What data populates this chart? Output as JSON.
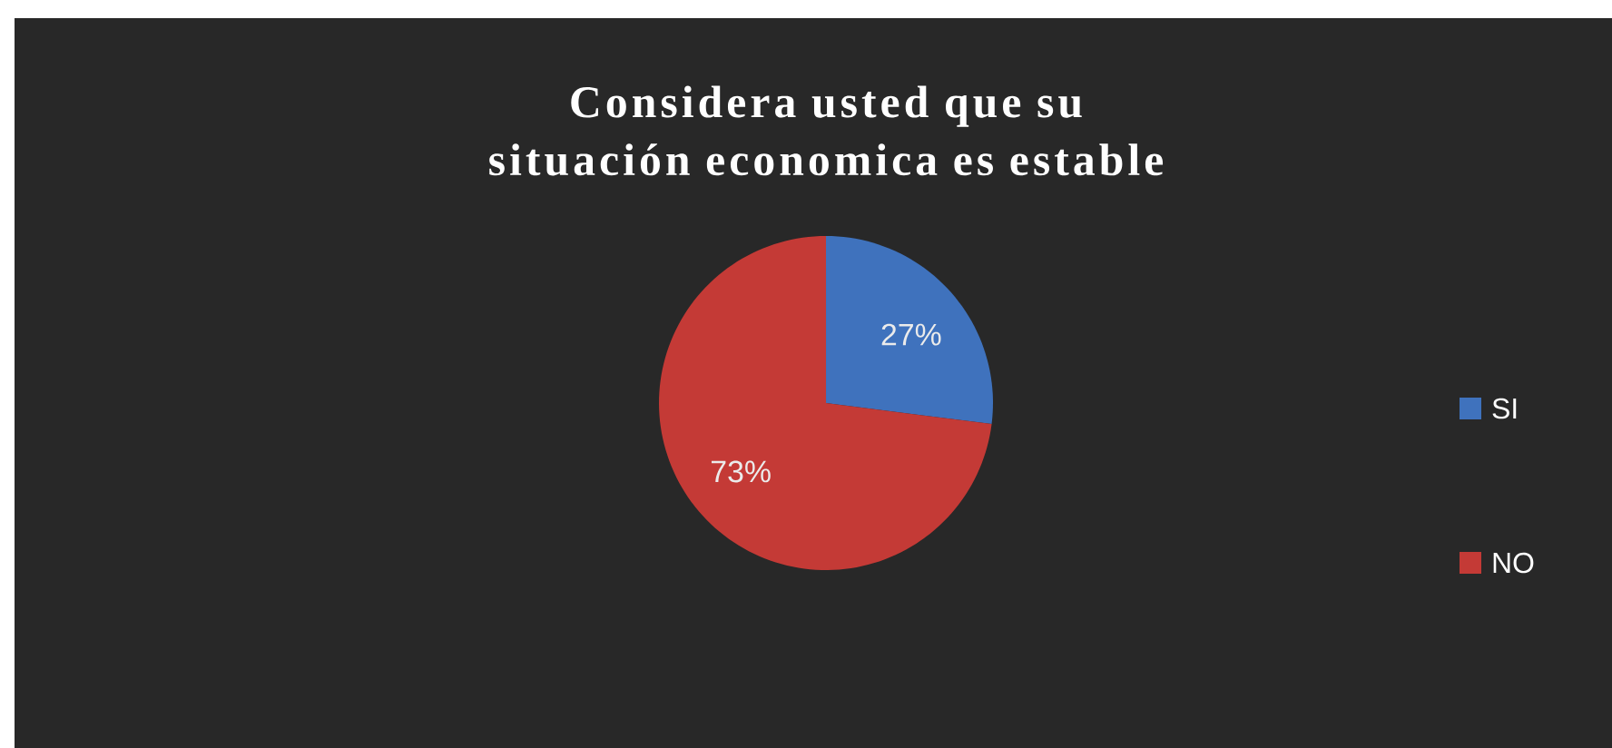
{
  "chart_data": {
    "type": "pie",
    "title": "Considera usted que su situación economica es estable",
    "categories": [
      "SI",
      "NO"
    ],
    "values": [
      27,
      73
    ],
    "value_labels": [
      "27%",
      "73%"
    ],
    "colors": [
      "#3f72bd",
      "#c43a36"
    ],
    "legend": "right"
  }
}
